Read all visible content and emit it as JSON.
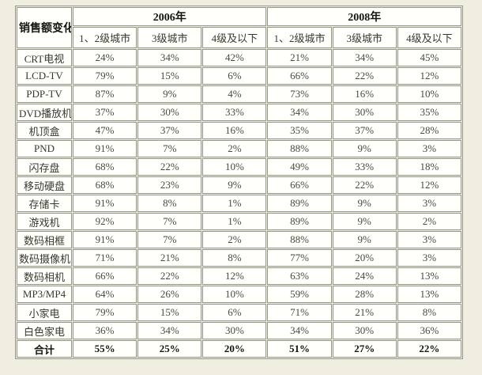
{
  "colors": {
    "page_background": "#f0eee1",
    "cell_background": "#fffffc",
    "border": "#96968a",
    "text": "#4a4a40",
    "header_text": "#15150f"
  },
  "chart_data": {
    "type": "table",
    "title": "销售额变化",
    "year_groups": [
      {
        "label": "2006年",
        "columns": [
          "1、2级城市",
          "3级城市",
          "4级及以下"
        ]
      },
      {
        "label": "2008年",
        "columns": [
          "1、2级城市",
          "3级城市",
          "4级及以下"
        ]
      }
    ],
    "rows": [
      {
        "label": "CRT电视",
        "values": [
          "24%",
          "34%",
          "42%",
          "21%",
          "34%",
          "45%"
        ]
      },
      {
        "label": "LCD-TV",
        "values": [
          "79%",
          "15%",
          "6%",
          "66%",
          "22%",
          "12%"
        ]
      },
      {
        "label": "PDP-TV",
        "values": [
          "87%",
          "9%",
          "4%",
          "73%",
          "16%",
          "10%"
        ]
      },
      {
        "label": "DVD播放机",
        "values": [
          "37%",
          "30%",
          "33%",
          "34%",
          "30%",
          "35%"
        ]
      },
      {
        "label": "机顶盒",
        "values": [
          "47%",
          "37%",
          "16%",
          "35%",
          "37%",
          "28%"
        ]
      },
      {
        "label": "PND",
        "values": [
          "91%",
          "7%",
          "2%",
          "88%",
          "9%",
          "3%"
        ]
      },
      {
        "label": "闪存盘",
        "values": [
          "68%",
          "22%",
          "10%",
          "49%",
          "33%",
          "18%"
        ]
      },
      {
        "label": "移动硬盘",
        "values": [
          "68%",
          "23%",
          "9%",
          "66%",
          "22%",
          "12%"
        ]
      },
      {
        "label": "存储卡",
        "values": [
          "91%",
          "8%",
          "1%",
          "89%",
          "9%",
          "3%"
        ]
      },
      {
        "label": "游戏机",
        "values": [
          "92%",
          "7%",
          "1%",
          "89%",
          "9%",
          "2%"
        ]
      },
      {
        "label": "数码相框",
        "values": [
          "91%",
          "7%",
          "2%",
          "88%",
          "9%",
          "3%"
        ]
      },
      {
        "label": "数码摄像机",
        "values": [
          "71%",
          "21%",
          "8%",
          "77%",
          "20%",
          "3%"
        ]
      },
      {
        "label": "数码相机",
        "values": [
          "66%",
          "22%",
          "12%",
          "63%",
          "24%",
          "13%"
        ]
      },
      {
        "label": "MP3/MP4",
        "values": [
          "64%",
          "26%",
          "10%",
          "59%",
          "28%",
          "13%"
        ]
      },
      {
        "label": "小家电",
        "values": [
          "79%",
          "15%",
          "6%",
          "71%",
          "21%",
          "8%"
        ]
      },
      {
        "label": "白色家电",
        "values": [
          "36%",
          "34%",
          "30%",
          "34%",
          "30%",
          "36%"
        ]
      },
      {
        "label": "合计",
        "values": [
          "55%",
          "25%",
          "20%",
          "51%",
          "27%",
          "22%"
        ],
        "bold": true
      }
    ]
  }
}
